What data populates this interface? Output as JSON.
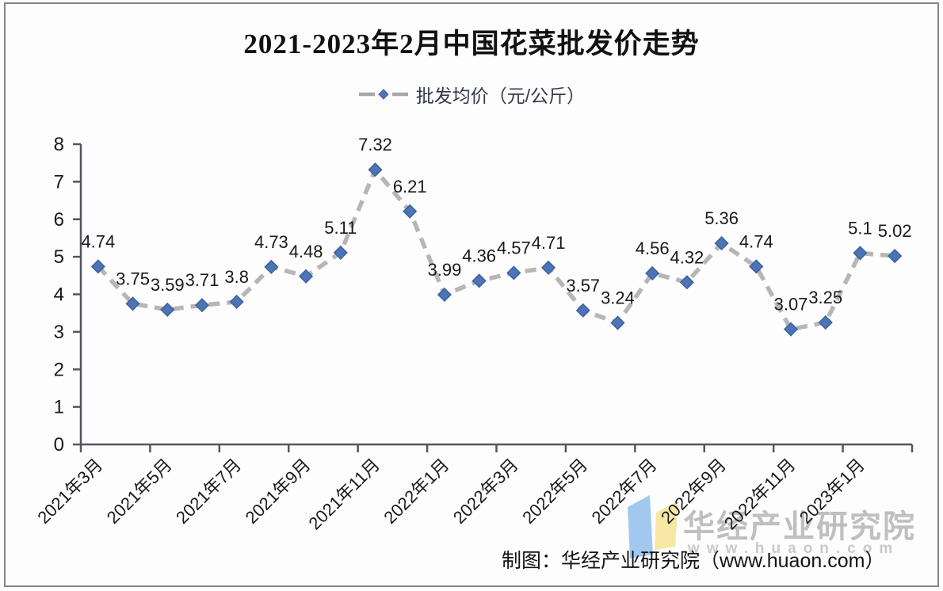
{
  "chart_data": {
    "type": "line",
    "title": "2021-2023年2月中国花菜批发价走势",
    "legend_position": "top",
    "grid": false,
    "ylim": [
      0,
      8
    ],
    "y_ticks": [
      0,
      1,
      2,
      3,
      4,
      5,
      6,
      7,
      8
    ],
    "x_tick_labels": [
      "2021年3月",
      "2021年5月",
      "2021年7月",
      "2021年9月",
      "2021年11月",
      "2022年1月",
      "2022年3月",
      "2022年5月",
      "2022年7月",
      "2022年9月",
      "2022年11月",
      "2023年1月"
    ],
    "x_tick_label_every": 2,
    "series": [
      {
        "name": "批发均价（元/公斤）",
        "values": [
          4.74,
          3.75,
          3.59,
          3.71,
          3.8,
          4.73,
          4.48,
          5.11,
          7.32,
          6.21,
          3.99,
          4.36,
          4.57,
          4.71,
          3.57,
          3.24,
          4.56,
          4.32,
          5.36,
          4.74,
          3.07,
          3.25,
          5.1,
          5.02
        ]
      }
    ],
    "colors": {
      "marker": "#4d74b5",
      "marker_border": "#3c61a0",
      "line": "#b6b6b6",
      "axis": "#55555f",
      "text": "#1a1a1a"
    }
  },
  "watermark": {
    "brand": "华经产业研究院",
    "url": "www.huaon.com",
    "logo_blue": "#a3c8f0",
    "logo_yellow": "#f6e7a4"
  },
  "footer": {
    "credit": "制图：华经产业研究院（www.huaon.com）"
  }
}
